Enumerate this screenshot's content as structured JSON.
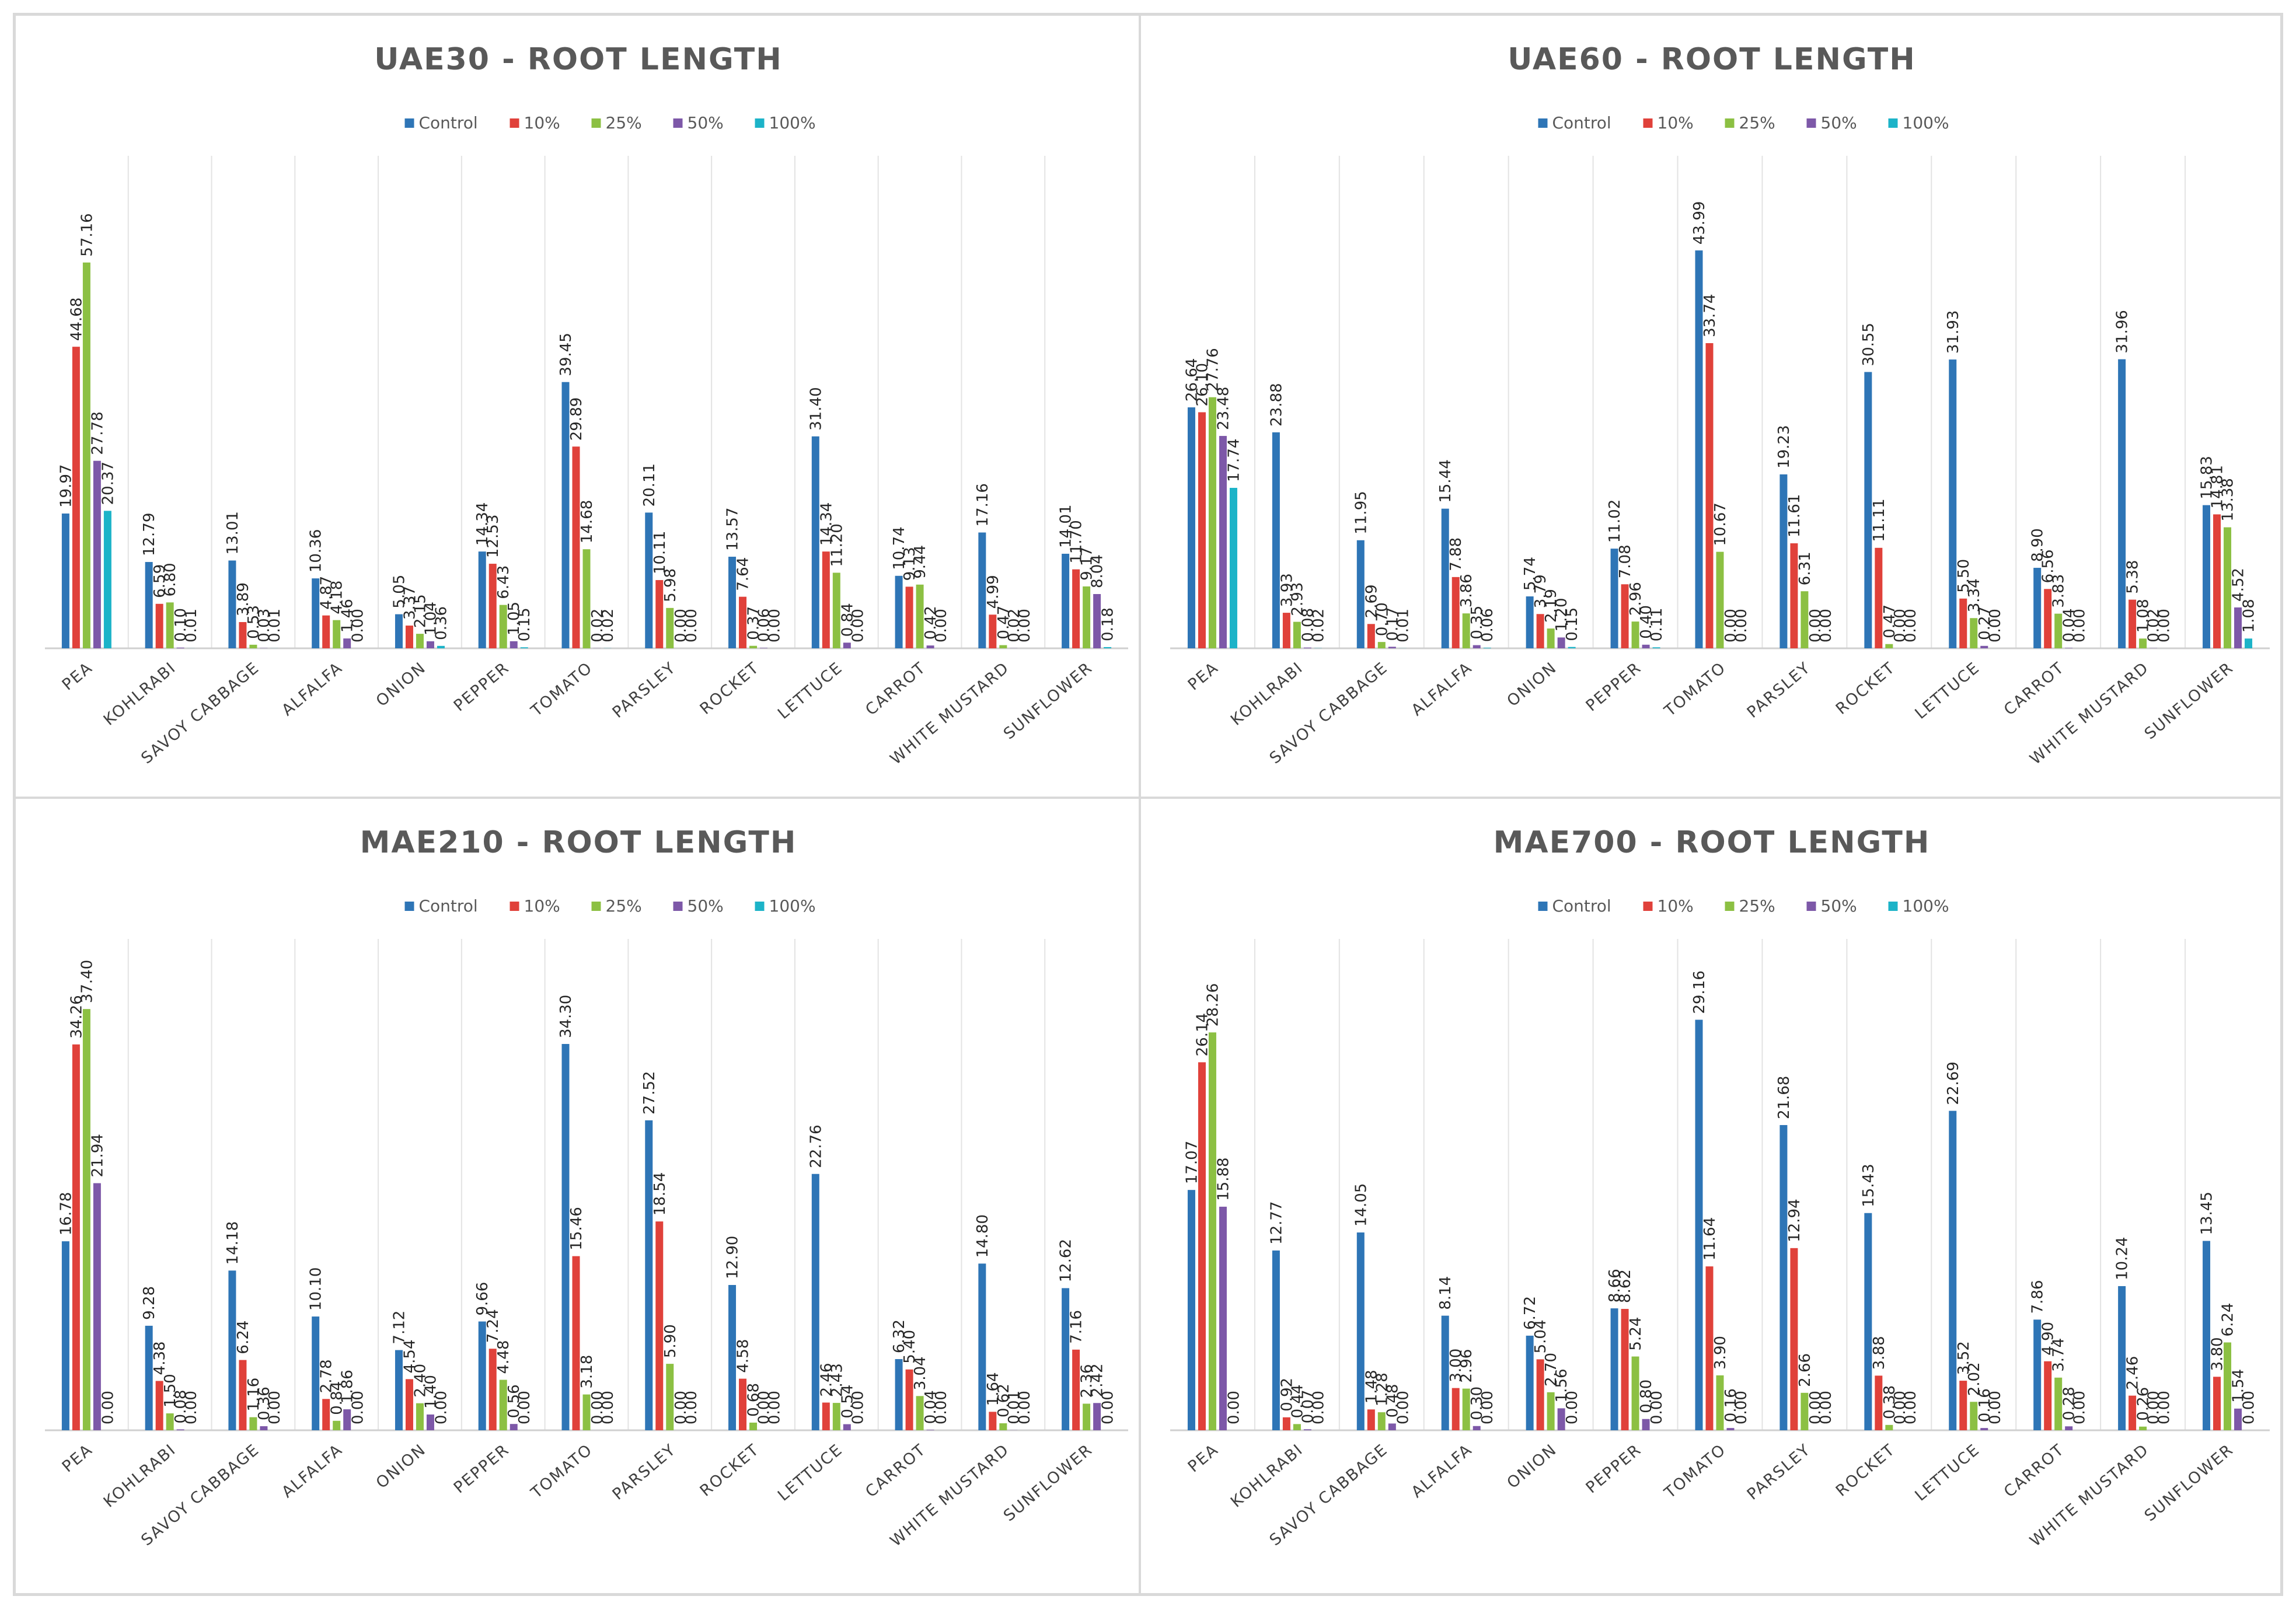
{
  "legend": [
    "Control",
    "10%",
    "25%",
    "50%",
    "100%"
  ],
  "colors": [
    "#2e75b6",
    "#e0413a",
    "#8cc043",
    "#7d58a8",
    "#1cb3c8"
  ],
  "categories": [
    "PEA",
    "KOHLRABI",
    "SAVOY CABBAGE",
    "ALFALFA",
    "ONION",
    "PEPPER",
    "TOMATO",
    "PARSLEY",
    "ROCKET",
    "LETTUCE",
    "CARROT",
    "WHITE MUSTARD",
    "SUNFLOWER"
  ],
  "chart_data": [
    {
      "type": "bar",
      "title": "UAE30 - ROOT LENGTH",
      "categories": [
        "PEA",
        "KOHLRABI",
        "SAVOY CABBAGE",
        "ALFALFA",
        "ONION",
        "PEPPER",
        "TOMATO",
        "PARSLEY",
        "ROCKET",
        "LETTUCE",
        "CARROT",
        "WHITE MUSTARD",
        "SUNFLOWER"
      ],
      "ylim": [
        0,
        60
      ],
      "series": [
        {
          "name": "Control",
          "values": [
            19.97,
            12.79,
            13.01,
            10.36,
            5.05,
            14.34,
            39.45,
            20.11,
            13.57,
            31.4,
            10.74,
            17.16,
            14.01
          ]
        },
        {
          "name": "10%",
          "values": [
            44.68,
            6.59,
            3.89,
            4.87,
            3.37,
            12.53,
            29.89,
            10.11,
            7.64,
            14.34,
            9.13,
            4.99,
            11.7
          ]
        },
        {
          "name": "25%",
          "values": [
            57.16,
            6.8,
            0.53,
            4.18,
            2.15,
            6.43,
            14.68,
            5.98,
            0.37,
            11.2,
            9.44,
            0.47,
            9.17
          ]
        },
        {
          "name": "50%",
          "values": [
            27.78,
            0.1,
            0.03,
            1.46,
            1.04,
            1.05,
            0.02,
            0.0,
            0.06,
            0.84,
            0.42,
            0.02,
            8.04
          ]
        },
        {
          "name": "100%",
          "values": [
            20.37,
            0.01,
            0.01,
            0.0,
            0.36,
            0.15,
            0.02,
            0.0,
            0.0,
            0.0,
            0.0,
            0.0,
            0.18
          ]
        }
      ]
    },
    {
      "type": "bar",
      "title": "UAE60 - ROOT LENGTH",
      "categories": [
        "PEA",
        "KOHLRABI",
        "SAVOY CABBAGE",
        "ALFALFA",
        "ONION",
        "PEPPER",
        "TOMATO",
        "PARSLEY",
        "ROCKET",
        "LETTUCE",
        "CARROT",
        "WHITE MUSTARD",
        "SUNFLOWER"
      ],
      "ylim": [
        0,
        48
      ],
      "series": [
        {
          "name": "Control",
          "values": [
            26.64,
            23.88,
            11.95,
            15.44,
            5.74,
            11.02,
            43.99,
            19.23,
            30.55,
            31.93,
            8.9,
            31.96,
            15.83
          ]
        },
        {
          "name": "10%",
          "values": [
            26.1,
            3.93,
            2.69,
            7.88,
            3.79,
            7.08,
            33.74,
            11.61,
            11.11,
            5.5,
            6.56,
            5.38,
            14.81
          ]
        },
        {
          "name": "25%",
          "values": [
            27.76,
            2.93,
            0.7,
            3.86,
            2.19,
            2.96,
            10.67,
            6.31,
            0.47,
            3.34,
            3.83,
            1.08,
            13.38
          ]
        },
        {
          "name": "50%",
          "values": [
            23.48,
            0.08,
            0.17,
            0.35,
            1.2,
            0.4,
            0.0,
            0.0,
            0.0,
            0.27,
            0.04,
            0.02,
            4.52
          ]
        },
        {
          "name": "100%",
          "values": [
            17.74,
            0.02,
            0.01,
            0.06,
            0.15,
            0.11,
            0.0,
            0.0,
            0.0,
            0.0,
            0.0,
            0.0,
            1.08
          ]
        }
      ]
    },
    {
      "type": "bar",
      "title": "MAE210 - ROOT LENGTH",
      "categories": [
        "PEA",
        "KOHLRABI",
        "SAVOY CABBAGE",
        "ALFALFA",
        "ONION",
        "PEPPER",
        "TOMATO",
        "PARSLEY",
        "ROCKET",
        "LETTUCE",
        "CARROT",
        "WHITE MUSTARD",
        "SUNFLOWER"
      ],
      "ylim": [
        0,
        40
      ],
      "series": [
        {
          "name": "Control",
          "values": [
            16.78,
            9.28,
            14.18,
            10.1,
            7.12,
            9.66,
            34.3,
            27.52,
            12.9,
            22.76,
            6.32,
            14.8,
            12.62
          ]
        },
        {
          "name": "10%",
          "values": [
            34.26,
            4.38,
            6.24,
            2.78,
            4.54,
            7.24,
            15.46,
            18.54,
            4.58,
            2.46,
            5.4,
            1.64,
            7.16
          ]
        },
        {
          "name": "25%",
          "values": [
            37.4,
            1.5,
            1.16,
            0.84,
            2.4,
            4.48,
            3.18,
            5.9,
            0.68,
            2.43,
            3.04,
            0.62,
            2.36
          ]
        },
        {
          "name": "50%",
          "values": [
            21.94,
            0.08,
            0.36,
            1.86,
            1.4,
            0.56,
            0.0,
            0.0,
            0.0,
            0.54,
            0.04,
            0.01,
            2.42
          ]
        },
        {
          "name": "100%",
          "values": [
            0.0,
            0.0,
            0.0,
            0.0,
            0.0,
            0.0,
            0.0,
            0.0,
            0.0,
            0.0,
            0.0,
            0.0,
            0.0
          ]
        }
      ]
    },
    {
      "type": "bar",
      "title": "MAE700 - ROOT LENGTH",
      "categories": [
        "PEA",
        "KOHLRABI",
        "SAVOY CABBAGE",
        "ALFALFA",
        "ONION",
        "PEPPER",
        "TOMATO",
        "PARSLEY",
        "ROCKET",
        "LETTUCE",
        "CARROT",
        "WHITE MUSTARD",
        "SUNFLOWER"
      ],
      "ylim": [
        0,
        32
      ],
      "series": [
        {
          "name": "Control",
          "values": [
            17.07,
            12.77,
            14.05,
            8.14,
            6.72,
            8.66,
            29.16,
            21.68,
            15.43,
            22.69,
            7.86,
            10.24,
            13.45
          ]
        },
        {
          "name": "10%",
          "values": [
            26.14,
            0.92,
            1.48,
            3.0,
            5.04,
            8.62,
            11.64,
            12.94,
            3.88,
            3.52,
            4.9,
            2.46,
            3.8
          ]
        },
        {
          "name": "25%",
          "values": [
            28.26,
            0.44,
            1.28,
            2.96,
            2.7,
            5.24,
            3.9,
            2.66,
            0.38,
            2.02,
            3.74,
            0.26,
            6.24
          ]
        },
        {
          "name": "50%",
          "values": [
            15.88,
            0.07,
            0.48,
            0.3,
            1.56,
            0.8,
            0.16,
            0.0,
            0.0,
            0.16,
            0.28,
            0.0,
            1.54
          ]
        },
        {
          "name": "100%",
          "values": [
            0.0,
            0.0,
            0.0,
            0.0,
            0.0,
            0.0,
            0.0,
            0.0,
            0.0,
            0.0,
            0.0,
            0.0,
            0.0
          ]
        }
      ]
    }
  ]
}
